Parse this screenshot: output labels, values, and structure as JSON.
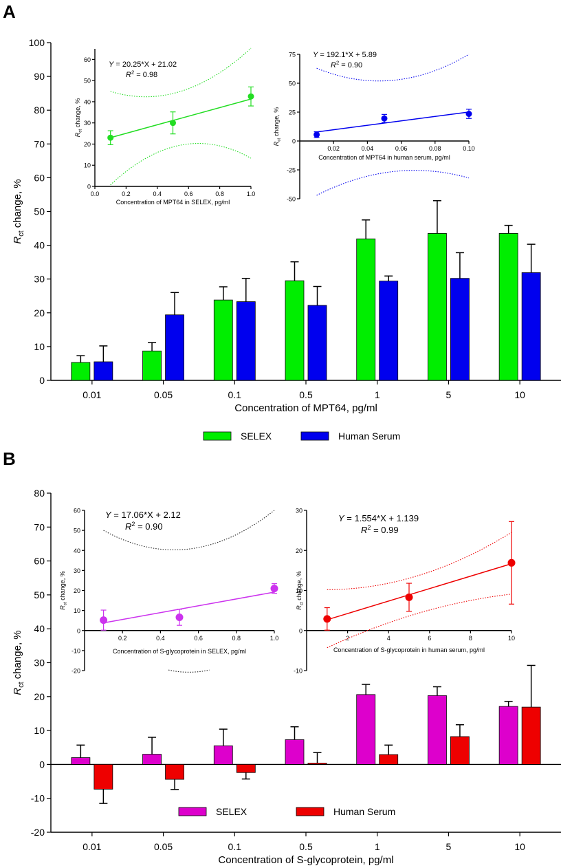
{
  "panels": [
    {
      "label": "A",
      "chart_data": {
        "type": "bar",
        "categories": [
          "0.01",
          "0.05",
          "0.1",
          "0.5",
          "1",
          "5",
          "10"
        ],
        "series": [
          {
            "name": "SELEX",
            "color": "#00ee00",
            "values": [
              5.3,
              8.7,
              23.8,
              29.5,
              41.9,
              43.5,
              43.5
            ],
            "errors": [
              2.0,
              2.5,
              3.9,
              5.6,
              5.6,
              9.7,
              2.4
            ]
          },
          {
            "name": "Human Serum",
            "color": "#0000ee",
            "values": [
              5.5,
              19.4,
              23.3,
              22.2,
              29.4,
              30.2,
              31.9
            ],
            "errors": [
              4.7,
              6.6,
              6.9,
              5.6,
              1.5,
              7.6,
              8.4
            ]
          }
        ],
        "xlabel": "Concentration of MPT64, pg/ml",
        "ylabel": {
          "main": "R",
          "sub": "ct",
          "rest": " change, %"
        },
        "ylim": [
          0,
          100
        ],
        "yticks": [
          0,
          10,
          20,
          30,
          40,
          50,
          60,
          70,
          80,
          90,
          100
        ],
        "legend": "bottom-center"
      },
      "insets": [
        {
          "type": "scatter",
          "color": "#22dd22",
          "x": [
            0.1,
            0.5,
            1.0
          ],
          "y": [
            23,
            30,
            42.5
          ],
          "errors": [
            3.3,
            5.2,
            4.5
          ],
          "fit": {
            "slope": 20.25,
            "intercept": 21.02
          },
          "band": {
            "upper": [
              44.9,
              44.9,
              65.3
            ],
            "lower": [
              0.7,
              19.5,
              13.3
            ]
          },
          "equation": "Y = 20.25*X + 21.02",
          "r2_value": "= 0.98",
          "xlabel": "Concentration of MPT64 in SELEX, pg/ml",
          "ylabel": {
            "main": "R",
            "sub": "ct",
            "rest": " change, %"
          },
          "xlim": [
            0,
            1.0
          ],
          "ylim": [
            0,
            65
          ],
          "xticks": [
            "0.0",
            "0.2",
            "0.4",
            "0.6",
            "0.8",
            "1.0"
          ],
          "yticks": [
            "0",
            "10",
            "20",
            "30",
            "40",
            "50",
            "60"
          ],
          "x_axis_position": "bottom"
        },
        {
          "type": "scatter",
          "color": "#0000ee",
          "x": [
            0.01,
            0.05,
            0.1
          ],
          "y": [
            5.5,
            19.5,
            23.5
          ],
          "errors": [
            2.5,
            3.5,
            4.0
          ],
          "fit": {
            "slope": 192.1,
            "intercept": 5.89
          },
          "band": {
            "upper": [
              63,
              52.5,
              75
            ],
            "lower": [
              -47,
              -26.5,
              -32
            ]
          },
          "equation": "Y = 192.1*X + 5.89",
          "r2_value": "= 0.90",
          "xlabel": "Concentration of MPT64 in human serum, pg/ml",
          "ylabel": {
            "main": "R",
            "sub": "ct",
            "rest": " change, %"
          },
          "xlim": [
            0,
            0.1
          ],
          "ylim": [
            -50,
            75
          ],
          "xticks": [
            "0.02",
            "0.04",
            "0.06",
            "0.08",
            "0.10"
          ],
          "yticks": [
            "-50",
            "-25",
            "0",
            "25",
            "50",
            "75"
          ],
          "x_axis_position": "zero"
        }
      ]
    },
    {
      "label": "B",
      "chart_data": {
        "type": "bar",
        "categories": [
          "0.01",
          "0.05",
          "0.1",
          "0.5",
          "1",
          "5",
          "10"
        ],
        "series": [
          {
            "name": "SELEX",
            "color": "#dd00cc",
            "values": [
              2.0,
              3.0,
              5.5,
              7.3,
              20.6,
              20.3,
              17.1
            ],
            "errors": [
              3.7,
              5.0,
              4.9,
              3.8,
              3.0,
              2.6,
              1.5
            ]
          },
          {
            "name": "Human Serum",
            "color": "#ee0000",
            "values": [
              -7.3,
              -4.4,
              -2.4,
              0.4,
              2.9,
              8.2,
              16.9
            ],
            "errors": [
              4.2,
              3.0,
              1.9,
              3.1,
              2.8,
              3.5,
              12.3
            ]
          }
        ],
        "xlabel": "Concentration of S-glycoprotein, pg/ml",
        "ylabel": {
          "main": "R",
          "sub": "ct",
          "rest": " change, %"
        },
        "ylim": [
          -20,
          80
        ],
        "yticks": [
          -20,
          -10,
          0,
          10,
          20,
          30,
          40,
          50,
          60,
          70,
          80
        ],
        "legend": "bottom-center"
      },
      "insets": [
        {
          "type": "scatter",
          "color": "#cc33ee",
          "x": [
            0.1,
            0.5,
            1.0
          ],
          "y": [
            5.2,
            6.6,
            21
          ],
          "errors": [
            5.0,
            4.0,
            2.4
          ],
          "fit": {
            "slope": 17.06,
            "intercept": 2.12
          },
          "band": {
            "upper": [
              50,
              40.7,
              60
            ],
            "lower": [
              null,
              -20.9,
              null
            ]
          },
          "equation": "Y = 17.06*X + 2.12",
          "r2_value": "= 0.90",
          "xlabel": "Concentration of S-glycoprotein in SELEX, pg/ml",
          "ylabel": {
            "main": "R",
            "sub": "ct",
            "rest": " change, %"
          },
          "xlim": [
            0,
            1.0
          ],
          "ylim": [
            -20,
            60
          ],
          "xticks": [
            "0.2",
            "0.4",
            "0.6",
            "0.8",
            "1.0"
          ],
          "yticks": [
            "-20",
            "-10",
            "0",
            "10",
            "20",
            "30",
            "40",
            "50",
            "60"
          ],
          "x_axis_position": "zero"
        },
        {
          "type": "scatter",
          "color": "#ee0000",
          "x": [
            1,
            5,
            10
          ],
          "y": [
            2.9,
            8.3,
            16.9
          ],
          "errors": [
            2.8,
            3.5,
            10.3
          ],
          "fit": {
            "slope": 1.554,
            "intercept": 1.139
          },
          "band": {
            "upper": [
              10.2,
              13.8,
              24.5
            ],
            "lower": [
              -4.3,
              4.4,
              9.1
            ]
          },
          "equation": "Y = 1.554*X + 1.139",
          "r2_value": "= 0.99",
          "xlabel": "Concentration of S-glycoprotein in human serum, pg/ml",
          "ylabel": {
            "main": "R",
            "sub": "ct",
            "rest": " change, %"
          },
          "xlim": [
            0,
            10
          ],
          "ylim": [
            -10,
            30
          ],
          "xticks": [
            "2",
            "4",
            "6",
            "8",
            "10"
          ],
          "yticks": [
            "-10",
            "0",
            "10",
            "20",
            "30"
          ],
          "x_axis_position": "zero"
        }
      ]
    }
  ]
}
